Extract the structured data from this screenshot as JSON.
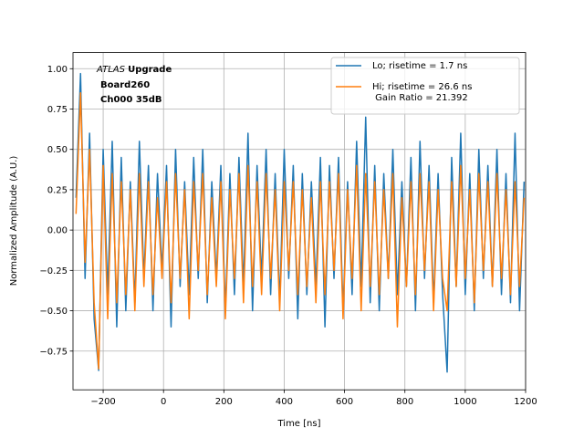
{
  "chart_data": {
    "type": "line",
    "annotation": {
      "italic": "ATLAS",
      "bold": "Upgrade",
      "lines": [
        "Board260",
        "Ch000 35dB"
      ]
    },
    "xlabel": "Time [ns]",
    "ylabel": "Normalized Amplitude (A.U.)",
    "xlim": [
      -300,
      1200
    ],
    "ylim": [
      -0.99,
      1.1
    ],
    "xticks": [
      {
        "value": -200,
        "label": "−200"
      },
      0,
      200,
      400,
      600,
      800,
      1000,
      1200
    ],
    "yticks": [
      {
        "value": -0.75,
        "label": "−0.75"
      },
      {
        "value": -0.5,
        "label": "−0.50"
      },
      {
        "value": -0.25,
        "label": "−0.25"
      },
      {
        "value": 0,
        "label": "0.00"
      },
      {
        "value": 0.25,
        "label": "0.25"
      },
      {
        "value": 0.5,
        "label": "0.50"
      },
      {
        "value": 0.75,
        "label": "0.75"
      },
      {
        "value": 1,
        "label": "1.00"
      }
    ],
    "grid": true,
    "legend": "upper right",
    "x": [
      -290,
      -275,
      -260,
      -245,
      -230,
      -215,
      -200,
      -185,
      -170,
      -155,
      -140,
      -125,
      -110,
      -95,
      -80,
      -65,
      -50,
      -35,
      -20,
      -5,
      10,
      25,
      40,
      55,
      70,
      85,
      100,
      115,
      130,
      145,
      160,
      175,
      190,
      205,
      220,
      235,
      250,
      265,
      280,
      295,
      310,
      325,
      340,
      355,
      370,
      385,
      400,
      415,
      430,
      445,
      460,
      475,
      490,
      505,
      520,
      535,
      550,
      565,
      580,
      595,
      610,
      625,
      640,
      655,
      670,
      685,
      700,
      715,
      730,
      745,
      760,
      775,
      790,
      805,
      820,
      835,
      850,
      865,
      880,
      895,
      910,
      925,
      940,
      955,
      970,
      985,
      1000,
      1015,
      1030,
      1045,
      1060,
      1075,
      1090,
      1105,
      1120,
      1135,
      1150,
      1165,
      1180,
      1195
    ],
    "series": [
      {
        "name": "Lo; risetime = 1.7 ns",
        "color": "#1f77b4",
        "values": [
          0.2,
          0.97,
          -0.3,
          0.6,
          -0.55,
          -0.87,
          0.5,
          -0.4,
          0.55,
          -0.6,
          0.45,
          -0.5,
          0.3,
          -0.45,
          0.55,
          -0.3,
          0.4,
          -0.5,
          0.35,
          -0.25,
          0.4,
          -0.6,
          0.5,
          -0.35,
          0.3,
          -0.4,
          0.45,
          -0.3,
          0.5,
          -0.45,
          0.3,
          -0.3,
          0.4,
          -0.5,
          0.35,
          -0.4,
          0.45,
          -0.35,
          0.6,
          -0.5,
          0.4,
          -0.3,
          0.5,
          -0.4,
          0.35,
          -0.45,
          0.5,
          -0.3,
          0.4,
          -0.55,
          0.35,
          -0.4,
          0.3,
          -0.35,
          0.45,
          -0.6,
          0.4,
          -0.3,
          0.45,
          -0.5,
          0.3,
          -0.4,
          0.55,
          -0.35,
          0.7,
          -0.45,
          0.4,
          -0.5,
          0.35,
          -0.3,
          0.5,
          -0.4,
          0.3,
          -0.35,
          0.45,
          -0.5,
          0.55,
          -0.3,
          0.4,
          -0.45,
          0.35,
          -0.4,
          -0.88,
          0.45,
          -0.35,
          0.6,
          -0.4,
          0.35,
          -0.5,
          0.5,
          -0.3,
          0.4,
          -0.35,
          0.5,
          -0.4,
          0.35,
          -0.45,
          0.6,
          -0.5,
          0.3
        ]
      },
      {
        "name": "Hi; risetime = 26.6 ns\n Gain Ratio = 21.392",
        "color": "#ff7f0e",
        "values": [
          0.1,
          0.85,
          -0.2,
          0.5,
          -0.45,
          -0.86,
          0.4,
          -0.55,
          0.35,
          -0.45,
          0.3,
          -0.4,
          0.25,
          -0.5,
          0.35,
          -0.35,
          0.3,
          -0.4,
          0.2,
          -0.3,
          0.3,
          -0.45,
          0.35,
          -0.3,
          0.25,
          -0.55,
          0.3,
          -0.25,
          0.35,
          -0.4,
          0.2,
          -0.35,
          0.3,
          -0.55,
          0.25,
          -0.3,
          0.35,
          -0.45,
          0.4,
          -0.35,
          0.3,
          -0.4,
          0.35,
          -0.3,
          0.25,
          -0.5,
          0.3,
          -0.25,
          0.3,
          -0.4,
          0.25,
          -0.35,
          0.2,
          -0.45,
          0.3,
          -0.4,
          0.3,
          -0.25,
          0.35,
          -0.55,
          0.25,
          -0.3,
          0.4,
          -0.5,
          0.35,
          -0.35,
          0.3,
          -0.4,
          0.25,
          -0.3,
          0.35,
          -0.6,
          0.2,
          -0.35,
          0.3,
          -0.4,
          0.35,
          -0.25,
          0.3,
          -0.5,
          0.25,
          -0.3,
          -0.5,
          0.3,
          -0.35,
          0.4,
          -0.3,
          0.25,
          -0.45,
          0.35,
          -0.25,
          0.3,
          -0.35,
          0.35,
          -0.3,
          0.25,
          -0.4,
          0.3,
          -0.35,
          0.2
        ]
      }
    ]
  }
}
